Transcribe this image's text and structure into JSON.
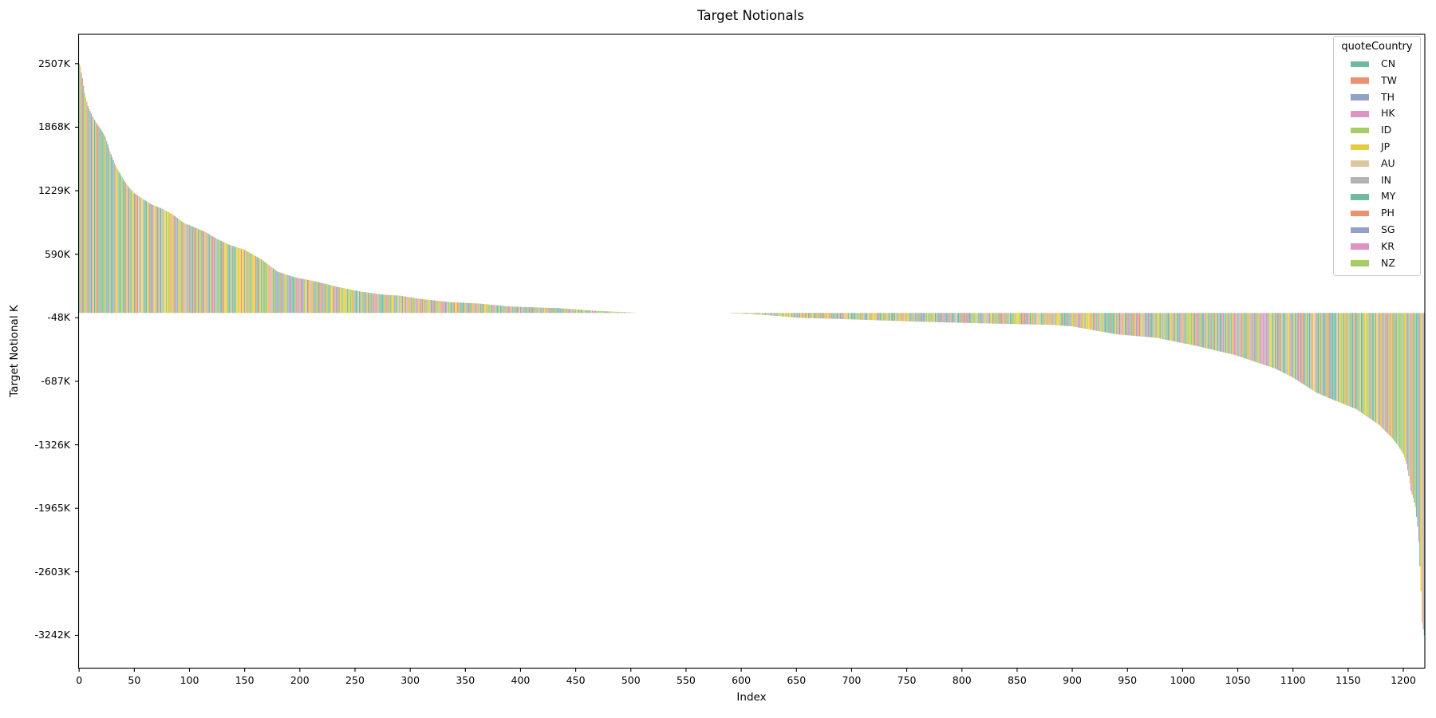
{
  "chart_data": {
    "type": "bar",
    "title": "Target Notionals",
    "xlabel": "Index",
    "ylabel": "Target Notional K",
    "n_bars": 1220,
    "grid": false,
    "xlim": [
      -0.5,
      1219.5
    ],
    "ylim_k": [
      -3572,
      2802
    ],
    "x_tick_values": [
      0,
      50,
      100,
      150,
      200,
      250,
      300,
      350,
      400,
      450,
      500,
      550,
      600,
      650,
      700,
      750,
      800,
      850,
      900,
      950,
      1000,
      1050,
      1100,
      1150,
      1200
    ],
    "y_ticks": [
      {
        "label": "2507K",
        "value_k": 2507
      },
      {
        "label": "1868K",
        "value_k": 1868
      },
      {
        "label": "1229K",
        "value_k": 1229
      },
      {
        "label": "590K",
        "value_k": 590
      },
      {
        "label": "-48K",
        "value_k": -48
      },
      {
        "label": "-687K",
        "value_k": -687
      },
      {
        "label": "-1326K",
        "value_k": -1326
      },
      {
        "label": "-1965K",
        "value_k": -1965
      },
      {
        "label": "-2603K",
        "value_k": -2603
      },
      {
        "label": "-3242K",
        "value_k": -3242
      }
    ],
    "value_max_k": 2507,
    "value_min_k": -3242,
    "legend": {
      "title": "quoteCountry",
      "position": "upper right",
      "entries": [
        {
          "label": "CN",
          "color": "#6fb9a2"
        },
        {
          "label": "TW",
          "color": "#eb9172"
        },
        {
          "label": "TH",
          "color": "#92a2c6"
        },
        {
          "label": "HK",
          "color": "#dd93c4"
        },
        {
          "label": "ID",
          "color": "#a5cd64"
        },
        {
          "label": "JP",
          "color": "#e5cc40"
        },
        {
          "label": "AU",
          "color": "#dfc69e"
        },
        {
          "label": "IN",
          "color": "#b3b3b3"
        },
        {
          "label": "MY",
          "color": "#6fb9a2"
        },
        {
          "label": "PH",
          "color": "#eb9172"
        },
        {
          "label": "SG",
          "color": "#92a2c6"
        },
        {
          "label": "KR",
          "color": "#dd93c4"
        },
        {
          "label": "NZ",
          "color": "#a5cd64"
        }
      ]
    },
    "bar_color_weights": [
      {
        "color": "#6fb9a2",
        "weight": 0.26
      },
      {
        "color": "#e5cc40",
        "weight": 0.19
      },
      {
        "color": "#a5cd64",
        "weight": 0.16
      },
      {
        "color": "#eb9172",
        "weight": 0.12
      },
      {
        "color": "#dd93c4",
        "weight": 0.1
      },
      {
        "color": "#92a2c6",
        "weight": 0.07
      },
      {
        "color": "#dfc69e",
        "weight": 0.05
      },
      {
        "color": "#b3b3b3",
        "weight": 0.05
      }
    ],
    "envelope_points_k": [
      [
        0,
        2507
      ],
      [
        1,
        2480
      ],
      [
        3,
        2360
      ],
      [
        5,
        2210
      ],
      [
        8,
        2080
      ],
      [
        12,
        1980
      ],
      [
        16,
        1905
      ],
      [
        20,
        1845
      ],
      [
        24,
        1765
      ],
      [
        28,
        1625
      ],
      [
        32,
        1505
      ],
      [
        36,
        1425
      ],
      [
        40,
        1345
      ],
      [
        45,
        1265
      ],
      [
        50,
        1205
      ],
      [
        58,
        1145
      ],
      [
        66,
        1090
      ],
      [
        75,
        1050
      ],
      [
        85,
        990
      ],
      [
        95,
        905
      ],
      [
        105,
        860
      ],
      [
        115,
        810
      ],
      [
        125,
        745
      ],
      [
        135,
        690
      ],
      [
        150,
        635
      ],
      [
        165,
        540
      ],
      [
        180,
        415
      ],
      [
        195,
        360
      ],
      [
        215,
        315
      ],
      [
        235,
        260
      ],
      [
        255,
        215
      ],
      [
        275,
        185
      ],
      [
        290,
        175
      ],
      [
        310,
        140
      ],
      [
        335,
        110
      ],
      [
        362,
        95
      ],
      [
        390,
        65
      ],
      [
        435,
        48
      ],
      [
        470,
        20
      ],
      [
        490,
        10
      ],
      [
        502,
        4
      ],
      [
        506,
        1
      ],
      [
        560,
        0
      ],
      [
        589,
        -1
      ],
      [
        591,
        -3
      ],
      [
        610,
        -12
      ],
      [
        630,
        -28
      ],
      [
        651,
        -48
      ],
      [
        700,
        -65
      ],
      [
        760,
        -88
      ],
      [
        820,
        -105
      ],
      [
        880,
        -120
      ],
      [
        900,
        -135
      ],
      [
        940,
        -215
      ],
      [
        976,
        -250
      ],
      [
        1012,
        -330
      ],
      [
        1048,
        -425
      ],
      [
        1084,
        -560
      ],
      [
        1100,
        -650
      ],
      [
        1121,
        -800
      ],
      [
        1140,
        -890
      ],
      [
        1157,
        -965
      ],
      [
        1178,
        -1125
      ],
      [
        1190,
        -1260
      ],
      [
        1195,
        -1330
      ],
      [
        1200,
        -1420
      ],
      [
        1203,
        -1520
      ],
      [
        1205,
        -1640
      ],
      [
        1207,
        -1790
      ],
      [
        1209,
        -1860
      ],
      [
        1211,
        -1954
      ],
      [
        1213,
        -2150
      ],
      [
        1214,
        -2300
      ],
      [
        1215,
        -2550
      ],
      [
        1216,
        -2800
      ],
      [
        1217,
        -3110
      ],
      [
        1218,
        -3180
      ],
      [
        1219,
        -3242
      ]
    ]
  }
}
